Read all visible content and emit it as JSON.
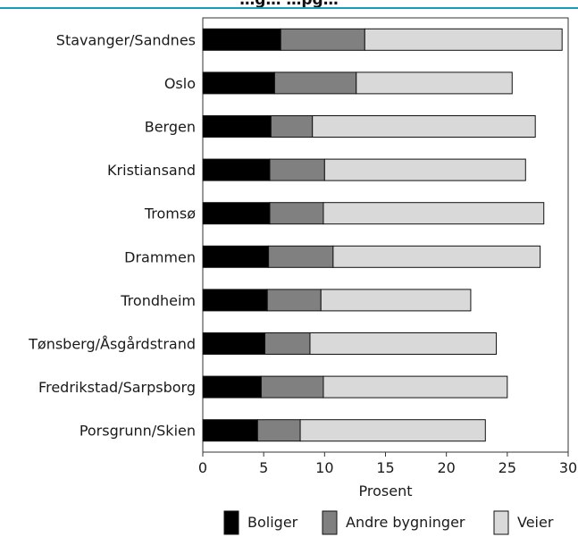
{
  "chart_data": {
    "type": "bar",
    "orientation": "horizontal",
    "stacked": true,
    "title": "…g… …pg…",
    "categories": [
      "Stavanger/Sandnes",
      "Oslo",
      "Bergen",
      "Kristiansand",
      "Tromsø",
      "Drammen",
      "Trondheim",
      "Tønsberg/Åsgårdstrand",
      "Fredrikstad/Sarpsborg",
      "Porsgrunn/Skien"
    ],
    "series": [
      {
        "name": "Boliger",
        "color": "#000000",
        "values": [
          6.4,
          5.9,
          5.6,
          5.5,
          5.5,
          5.4,
          5.3,
          5.1,
          4.8,
          4.5
        ]
      },
      {
        "name": "Andre bygninger",
        "color": "#808080",
        "values": [
          6.9,
          6.7,
          3.4,
          4.5,
          4.4,
          5.3,
          4.4,
          3.7,
          5.1,
          3.5
        ]
      },
      {
        "name": "Veier",
        "color": "#d9d9d9",
        "values": [
          16.2,
          12.8,
          18.3,
          16.5,
          18.1,
          17.0,
          12.3,
          15.3,
          15.1,
          15.2
        ]
      }
    ],
    "xlabel": "Prosent",
    "xlim": [
      0,
      30
    ],
    "xticks": [
      "0",
      "5",
      "10",
      "15",
      "20",
      "25",
      "30"
    ],
    "grid": false,
    "legend_position": "bottom"
  }
}
